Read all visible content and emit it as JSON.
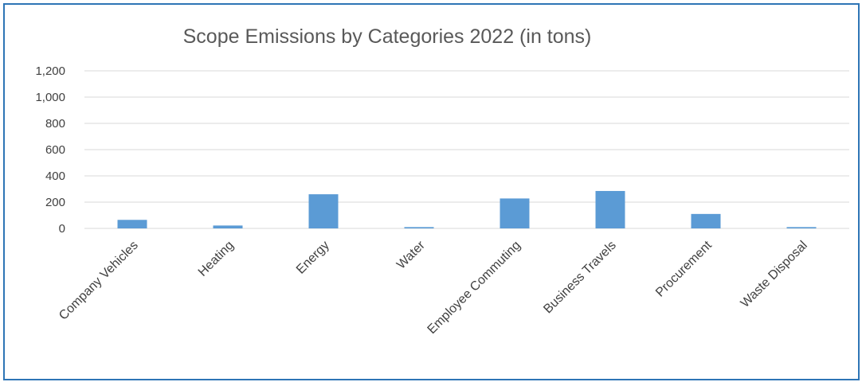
{
  "chart_data": {
    "type": "bar",
    "title": "Scope Emissions by Categories 2022 (in tons)",
    "xlabel": "",
    "ylabel": "",
    "categories": [
      "Company Vehicles",
      "Heating",
      "Energy",
      "Water",
      "Employee Commuting",
      "Business Travels",
      "Procurement",
      "Waste Disposal"
    ],
    "values": [
      65,
      22,
      260,
      10,
      228,
      285,
      110,
      10
    ],
    "ylim": [
      0,
      1200
    ],
    "yticks": [
      "0",
      "200",
      "400",
      "600",
      "800",
      "1,000",
      "1,200"
    ],
    "ytick_values": [
      0,
      200,
      400,
      600,
      800,
      1000,
      1200
    ],
    "grid": true,
    "legend": "none",
    "colors": {
      "bar": "#5b9bd5",
      "grid": "#d9d9d9",
      "frame": "#2e75b6"
    }
  }
}
